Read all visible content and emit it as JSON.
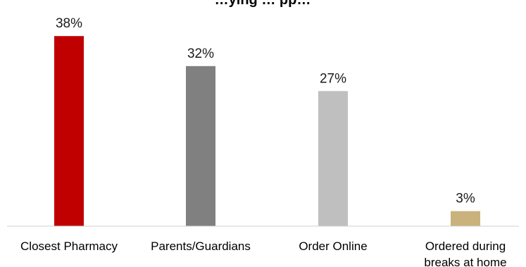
{
  "chart_data": {
    "type": "bar",
    "title": "…ying … pp…",
    "xlabel": "",
    "ylabel": "",
    "ylim": [
      0,
      40
    ],
    "grid": false,
    "legend": "none",
    "value_suffix": "%",
    "categories": [
      [
        "Closest Pharmacy"
      ],
      [
        "Parents/Guardians"
      ],
      [
        "Order Online"
      ],
      [
        "Ordered during",
        "breaks at home"
      ]
    ],
    "values": [
      38,
      32,
      27,
      3
    ],
    "value_labels": [
      "38%",
      "32%",
      "27%",
      "3%"
    ],
    "bar_colors": [
      "#c00000",
      "#808080",
      "#bfbfbf",
      "#c9b27c"
    ],
    "axis_color": "#d0d0d0"
  }
}
